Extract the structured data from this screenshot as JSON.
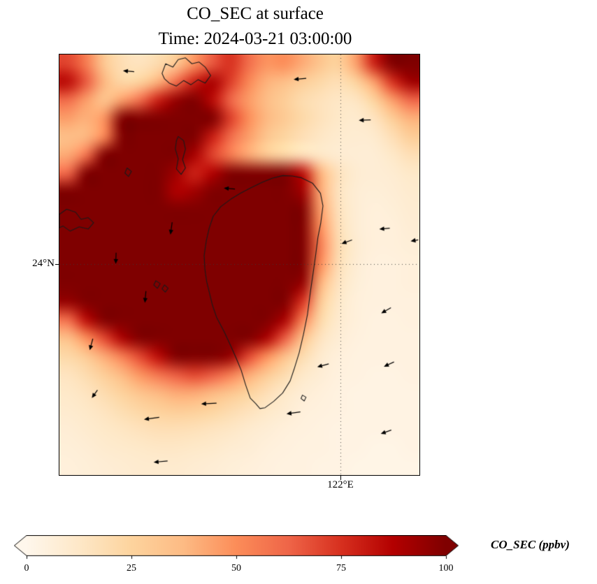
{
  "figure": {
    "title_line1": "CO_SEC at surface",
    "title_line2": "Time: 2024-03-21 03:00:00"
  },
  "map": {
    "ytick_label": "24°N",
    "xtick_label": "122°E"
  },
  "colorbar": {
    "label": "CO_SEC (ppbv)",
    "ticks": [
      0,
      25,
      50,
      75,
      100
    ],
    "min": 0,
    "max": 100,
    "extend": "both"
  },
  "chart_data": {
    "type": "heatmap",
    "title": "CO_SEC at surface",
    "subtitle": "Time: 2024-03-21 03:00:00",
    "variable": "CO_SEC",
    "units": "ppbv",
    "colorbar_label": "CO_SEC (ppbv)",
    "colormap": "OrRd",
    "colormap_stops": [
      "#fff7ec",
      "#fee8c8",
      "#fdd49e",
      "#fdbb84",
      "#fc8d59",
      "#ef6548",
      "#d7301f",
      "#b30000",
      "#7f0000"
    ],
    "color_min": 0,
    "color_max": 100,
    "x_gridline": {
      "label": "122°E",
      "frac": 0.7805
    },
    "y_gridline": {
      "label": "24°N",
      "frac": 0.4983
    },
    "grid": {
      "ncols": 20,
      "nrows": 23,
      "values": [
        [
          70,
          55,
          30,
          18,
          15,
          20,
          30,
          48,
          65,
          75,
          60,
          48,
          50,
          42,
          32,
          26,
          45,
          80,
          108,
          108
        ],
        [
          85,
          65,
          38,
          22,
          25,
          40,
          60,
          80,
          90,
          72,
          52,
          40,
          35,
          28,
          22,
          18,
          25,
          45,
          75,
          92
        ],
        [
          60,
          45,
          32,
          45,
          60,
          80,
          95,
          105,
          85,
          62,
          46,
          36,
          28,
          20,
          16,
          13,
          14,
          25,
          45,
          62
        ],
        [
          45,
          40,
          48,
          105,
          108,
          108,
          108,
          108,
          105,
          72,
          50,
          38,
          30,
          22,
          16,
          12,
          10,
          15,
          28,
          40
        ],
        [
          35,
          38,
          52,
          108,
          108,
          108,
          108,
          105,
          80,
          60,
          45,
          32,
          24,
          18,
          13,
          10,
          9,
          10,
          18,
          28
        ],
        [
          42,
          58,
          105,
          108,
          108,
          108,
          108,
          90,
          70,
          55,
          42,
          30,
          22,
          16,
          12,
          9,
          8,
          8,
          12,
          18
        ],
        [
          62,
          105,
          108,
          108,
          108,
          108,
          92,
          78,
          88,
          105,
          108,
          108,
          105,
          85,
          40,
          16,
          9,
          8,
          9,
          12
        ],
        [
          105,
          108,
          108,
          108,
          108,
          108,
          88,
          92,
          108,
          108,
          108,
          108,
          108,
          92,
          42,
          15,
          8,
          7,
          8,
          10
        ],
        [
          108,
          108,
          108,
          108,
          108,
          108,
          108,
          108,
          108,
          108,
          108,
          108,
          108,
          100,
          46,
          16,
          8,
          6,
          7,
          9
        ],
        [
          108,
          108,
          108,
          108,
          108,
          108,
          108,
          108,
          108,
          108,
          108,
          108,
          108,
          102,
          50,
          18,
          8,
          6,
          6,
          8
        ],
        [
          108,
          108,
          108,
          108,
          108,
          108,
          108,
          108,
          108,
          108,
          108,
          108,
          108,
          102,
          55,
          20,
          9,
          6,
          6,
          7
        ],
        [
          108,
          108,
          108,
          108,
          108,
          108,
          100,
          105,
          108,
          108,
          108,
          108,
          108,
          100,
          50,
          18,
          8,
          5,
          5,
          6
        ],
        [
          108,
          108,
          108,
          108,
          108,
          108,
          108,
          108,
          108,
          108,
          108,
          108,
          105,
          95,
          40,
          15,
          7,
          5,
          5,
          6
        ],
        [
          95,
          108,
          108,
          108,
          108,
          108,
          108,
          108,
          108,
          108,
          108,
          108,
          100,
          75,
          30,
          12,
          6,
          5,
          5,
          5
        ],
        [
          60,
          85,
          105,
          108,
          108,
          108,
          108,
          108,
          108,
          108,
          108,
          105,
          90,
          55,
          22,
          10,
          6,
          4,
          4,
          5
        ],
        [
          35,
          50,
          70,
          90,
          105,
          108,
          108,
          108,
          108,
          108,
          105,
          90,
          65,
          35,
          15,
          8,
          5,
          4,
          4,
          4
        ],
        [
          22,
          30,
          42,
          55,
          70,
          85,
          100,
          108,
          108,
          95,
          70,
          50,
          35,
          20,
          10,
          6,
          4,
          4,
          4,
          4
        ],
        [
          15,
          20,
          28,
          38,
          48,
          58,
          65,
          70,
          65,
          55,
          42,
          30,
          20,
          12,
          8,
          5,
          4,
          3,
          3,
          4
        ],
        [
          12,
          15,
          20,
          26,
          33,
          38,
          42,
          42,
          38,
          32,
          25,
          18,
          12,
          8,
          6,
          4,
          3,
          3,
          3,
          3
        ],
        [
          10,
          12,
          15,
          19,
          23,
          26,
          28,
          27,
          24,
          20,
          16,
          12,
          9,
          6,
          5,
          4,
          3,
          3,
          3,
          3
        ],
        [
          8,
          10,
          12,
          14,
          16,
          18,
          18,
          17,
          15,
          13,
          10,
          8,
          6,
          5,
          4,
          3,
          3,
          3,
          3,
          3
        ],
        [
          7,
          8,
          10,
          11,
          12,
          13,
          13,
          12,
          11,
          9,
          8,
          6,
          5,
          4,
          4,
          3,
          3,
          2,
          2,
          3
        ],
        [
          6,
          7,
          8,
          9,
          10,
          10,
          10,
          9,
          8,
          7,
          6,
          5,
          4,
          4,
          3,
          3,
          2,
          2,
          2,
          2
        ]
      ]
    },
    "coastlines": [
      {
        "name": "taiwan-island",
        "closed": true,
        "points": [
          [
            0.647,
            0.289
          ],
          [
            0.672,
            0.293
          ],
          [
            0.703,
            0.306
          ],
          [
            0.725,
            0.33
          ],
          [
            0.732,
            0.36
          ],
          [
            0.726,
            0.4
          ],
          [
            0.718,
            0.435
          ],
          [
            0.712,
            0.475
          ],
          [
            0.705,
            0.518
          ],
          [
            0.697,
            0.565
          ],
          [
            0.689,
            0.618
          ],
          [
            0.678,
            0.665
          ],
          [
            0.666,
            0.709
          ],
          [
            0.652,
            0.748
          ],
          [
            0.641,
            0.776
          ],
          [
            0.62,
            0.805
          ],
          [
            0.595,
            0.825
          ],
          [
            0.571,
            0.84
          ],
          [
            0.557,
            0.842
          ],
          [
            0.545,
            0.83
          ],
          [
            0.53,
            0.817
          ],
          [
            0.517,
            0.785
          ],
          [
            0.505,
            0.751
          ],
          [
            0.49,
            0.72
          ],
          [
            0.476,
            0.693
          ],
          [
            0.458,
            0.66
          ],
          [
            0.437,
            0.626
          ],
          [
            0.425,
            0.596
          ],
          [
            0.417,
            0.568
          ],
          [
            0.409,
            0.54
          ],
          [
            0.404,
            0.51
          ],
          [
            0.402,
            0.478
          ],
          [
            0.408,
            0.443
          ],
          [
            0.416,
            0.413
          ],
          [
            0.427,
            0.385
          ],
          [
            0.448,
            0.362
          ],
          [
            0.476,
            0.344
          ],
          [
            0.505,
            0.329
          ],
          [
            0.534,
            0.316
          ],
          [
            0.563,
            0.304
          ],
          [
            0.592,
            0.294
          ],
          [
            0.62,
            0.288
          ]
        ]
      },
      {
        "name": "mainland-coast-north",
        "closed": true,
        "points": [
          [
            0.285,
            0.045
          ],
          [
            0.295,
            0.022
          ],
          [
            0.315,
            0.03
          ],
          [
            0.33,
            0.012
          ],
          [
            0.35,
            0.008
          ],
          [
            0.368,
            0.022
          ],
          [
            0.388,
            0.018
          ],
          [
            0.405,
            0.03
          ],
          [
            0.42,
            0.05
          ],
          [
            0.405,
            0.068
          ],
          [
            0.385,
            0.06
          ],
          [
            0.365,
            0.072
          ],
          [
            0.345,
            0.062
          ],
          [
            0.325,
            0.075
          ],
          [
            0.305,
            0.068
          ],
          [
            0.292,
            0.058
          ]
        ]
      },
      {
        "name": "island-fragment-1",
        "closed": true,
        "points": [
          [
            0.33,
            0.195
          ],
          [
            0.345,
            0.205
          ],
          [
            0.35,
            0.225
          ],
          [
            0.342,
            0.25
          ],
          [
            0.35,
            0.27
          ],
          [
            0.338,
            0.285
          ],
          [
            0.325,
            0.272
          ],
          [
            0.33,
            0.248
          ],
          [
            0.322,
            0.225
          ],
          [
            0.325,
            0.205
          ]
        ]
      },
      {
        "name": "island-fragment-2",
        "closed": true,
        "points": [
          [
            0.188,
            0.27
          ],
          [
            0.2,
            0.278
          ],
          [
            0.192,
            0.29
          ],
          [
            0.182,
            0.282
          ]
        ]
      },
      {
        "name": "coast-fragment-west",
        "closed": true,
        "points": [
          [
            0.0,
            0.38
          ],
          [
            0.02,
            0.368
          ],
          [
            0.045,
            0.375
          ],
          [
            0.06,
            0.392
          ],
          [
            0.08,
            0.388
          ],
          [
            0.095,
            0.4
          ],
          [
            0.08,
            0.415
          ],
          [
            0.055,
            0.41
          ],
          [
            0.03,
            0.42
          ],
          [
            0.01,
            0.408
          ],
          [
            0.0,
            0.412
          ]
        ]
      },
      {
        "name": "penghu-islet-1",
        "closed": true,
        "points": [
          [
            0.268,
            0.538
          ],
          [
            0.28,
            0.545
          ],
          [
            0.272,
            0.556
          ],
          [
            0.262,
            0.548
          ]
        ]
      },
      {
        "name": "penghu-islet-2",
        "closed": true,
        "points": [
          [
            0.292,
            0.548
          ],
          [
            0.302,
            0.556
          ],
          [
            0.294,
            0.565
          ],
          [
            0.285,
            0.557
          ]
        ]
      },
      {
        "name": "southeast-islet",
        "closed": true,
        "points": [
          [
            0.675,
            0.81
          ],
          [
            0.685,
            0.815
          ],
          [
            0.68,
            0.824
          ],
          [
            0.671,
            0.818
          ]
        ]
      }
    ],
    "wind_arrows": [
      {
        "x": 0.194,
        "y": 0.04,
        "angle": 175,
        "len": 14
      },
      {
        "x": 0.67,
        "y": 0.058,
        "angle": 185,
        "len": 16
      },
      {
        "x": 0.85,
        "y": 0.156,
        "angle": 182,
        "len": 15
      },
      {
        "x": 0.474,
        "y": 0.319,
        "angle": 175,
        "len": 14
      },
      {
        "x": 0.311,
        "y": 0.412,
        "angle": 262,
        "len": 16
      },
      {
        "x": 0.157,
        "y": 0.483,
        "angle": 268,
        "len": 14
      },
      {
        "x": 0.8,
        "y": 0.445,
        "angle": 200,
        "len": 14
      },
      {
        "x": 0.905,
        "y": 0.414,
        "angle": 185,
        "len": 13
      },
      {
        "x": 0.988,
        "y": 0.442,
        "angle": 190,
        "len": 9
      },
      {
        "x": 0.239,
        "y": 0.575,
        "angle": 265,
        "len": 15
      },
      {
        "x": 0.089,
        "y": 0.688,
        "angle": 255,
        "len": 15
      },
      {
        "x": 0.909,
        "y": 0.608,
        "angle": 210,
        "len": 14
      },
      {
        "x": 0.734,
        "y": 0.739,
        "angle": 195,
        "len": 15
      },
      {
        "x": 0.917,
        "y": 0.736,
        "angle": 205,
        "len": 14
      },
      {
        "x": 0.417,
        "y": 0.83,
        "angle": 183,
        "len": 20
      },
      {
        "x": 0.652,
        "y": 0.852,
        "angle": 188,
        "len": 18
      },
      {
        "x": 0.099,
        "y": 0.806,
        "angle": 235,
        "len": 12
      },
      {
        "x": 0.258,
        "y": 0.865,
        "angle": 188,
        "len": 20
      },
      {
        "x": 0.909,
        "y": 0.897,
        "angle": 200,
        "len": 14
      },
      {
        "x": 0.283,
        "y": 0.968,
        "angle": 185,
        "len": 18
      }
    ]
  }
}
